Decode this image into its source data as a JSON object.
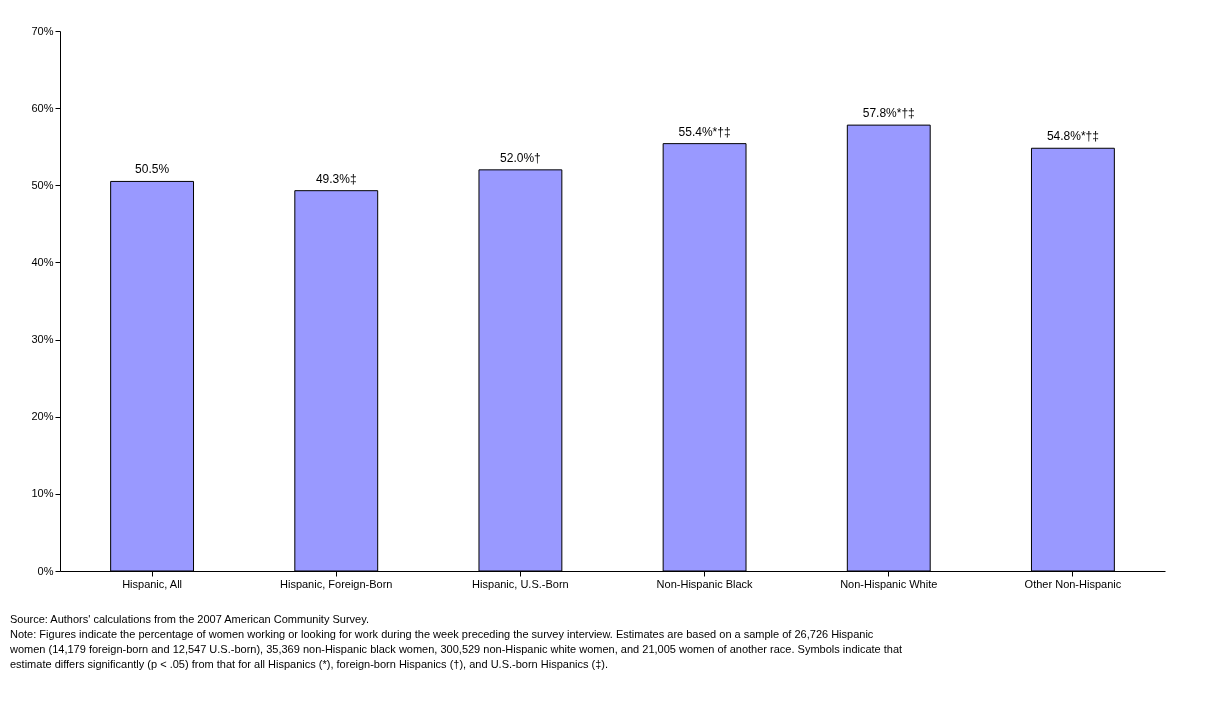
{
  "chart_data": {
    "type": "bar",
    "categories": [
      "Hispanic, All",
      "Hispanic, Foreign-Born",
      "Hispanic, U.S.-Born",
      "Non-Hispanic Black",
      "Non-Hispanic White",
      "Other Non-Hispanic"
    ],
    "values": [
      50.5,
      49.3,
      52.0,
      55.4,
      57.8,
      54.8
    ],
    "value_labels": [
      "50.5%",
      "49.3%‡",
      "52.0%†",
      "55.4%*†‡",
      "57.8%*†‡",
      "54.8%*†‡"
    ],
    "color": "#9999ff",
    "ylim": [
      0,
      70
    ],
    "yticks": [
      {
        "value": 0,
        "label": "0%"
      },
      {
        "value": 10,
        "label": "10%"
      },
      {
        "value": 20,
        "label": "20%"
      },
      {
        "value": 30,
        "label": "30%"
      },
      {
        "value": 40,
        "label": "40%"
      },
      {
        "value": 50,
        "label": "50%"
      },
      {
        "value": 60,
        "label": "60%"
      },
      {
        "value": 70,
        "label": "70%"
      }
    ],
    "grid": false,
    "annotations": [
      "Source: Authors' calculations from the 2007 American Community Survey.",
      "Note: Figures indicate the percentage of women working or looking for work during the week preceding the survey interview. Estimates are based on a sample of 26,726 Hispanic women (14,179 foreign-born and 12,547 U.S.-born), 35,369 non-Hispanic black women, 300,529 non-Hispanic white women, and 21,005 women of another race. Symbols indicate that estimate differs significantly (p < .05) from that for all Hispanics (*), foreign-born Hispanics (†), and U.S.-born Hispanics (‡)."
    ]
  }
}
